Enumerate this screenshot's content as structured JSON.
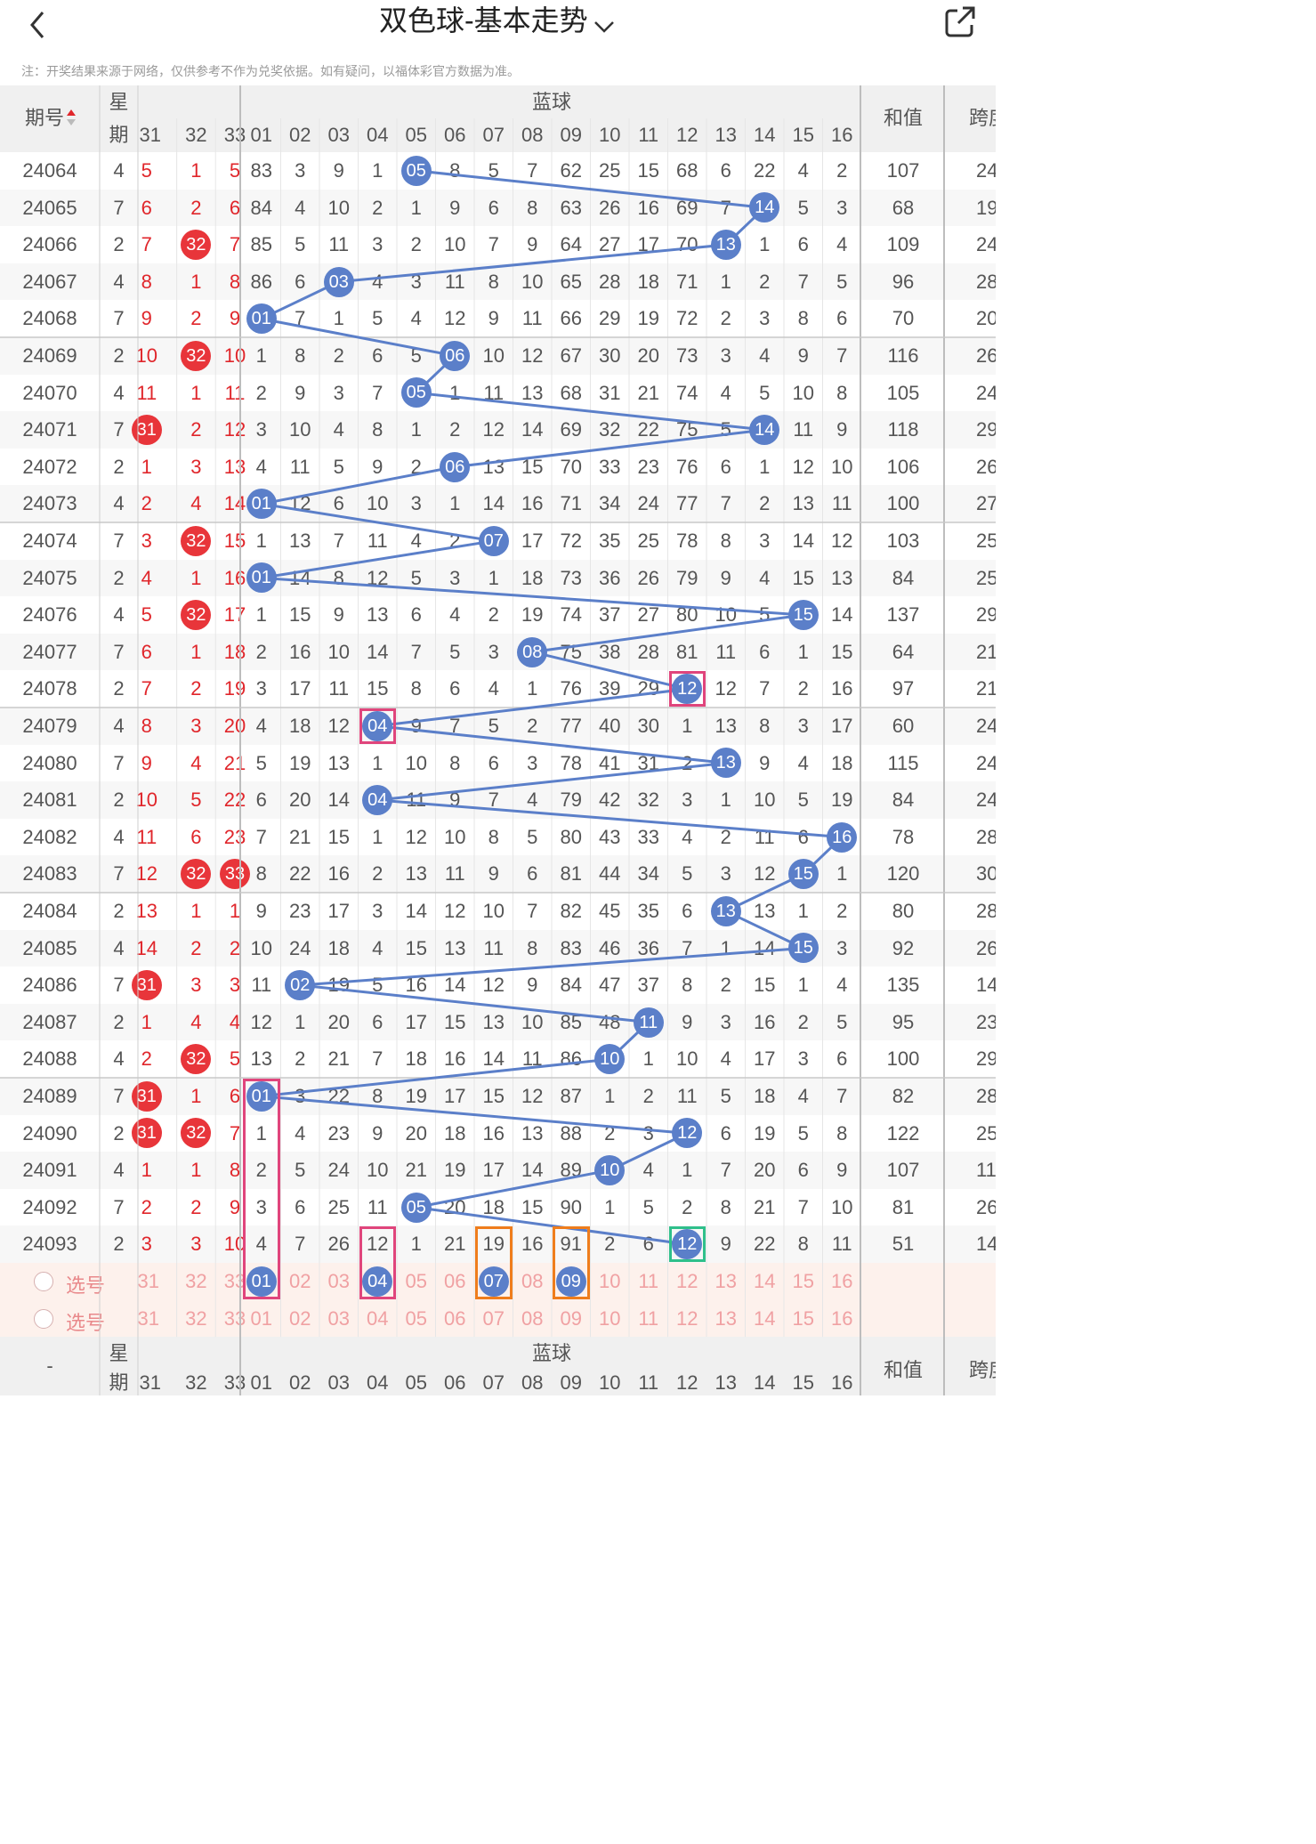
{
  "header": {
    "title": "双色球-基本走势",
    "note": "注：开奖结果来源于网络，仅供参考不作为兑奖依据。如有疑问，以福体彩官方数据为准。"
  },
  "table": {
    "col_period": "期号",
    "col_week_top": "星",
    "col_week_bottom": "期",
    "red_tail_cols": [
      "31",
      "32",
      "33"
    ],
    "blue_group_label": "蓝球",
    "blue_cols": [
      "01",
      "02",
      "03",
      "04",
      "05",
      "06",
      "07",
      "08",
      "09",
      "10",
      "11",
      "12",
      "13",
      "14",
      "15",
      "16"
    ],
    "col_sum": "和值",
    "col_span": "跨度",
    "footer_dash": "-",
    "pick_label": "选号",
    "sort_icon": "sort-icon",
    "rows": [
      {
        "p": "24064",
        "w": "4",
        "r": [
          "5",
          "1",
          "5"
        ],
        "rh": [],
        "b": [
          "83",
          "3",
          "9",
          "1",
          "05",
          "8",
          "5",
          "7",
          "62",
          "25",
          "15",
          "68",
          "6",
          "22",
          "4",
          "2"
        ],
        "bh": 4,
        "s": "107",
        "k": "24"
      },
      {
        "p": "24065",
        "w": "7",
        "r": [
          "6",
          "2",
          "6"
        ],
        "rh": [],
        "b": [
          "84",
          "4",
          "10",
          "2",
          "1",
          "9",
          "6",
          "8",
          "63",
          "26",
          "16",
          "69",
          "7",
          "14",
          "5",
          "3"
        ],
        "bh": 13,
        "s": "68",
        "k": "19"
      },
      {
        "p": "24066",
        "w": "2",
        "r": [
          "7",
          "32",
          "7"
        ],
        "rh": [
          1
        ],
        "b": [
          "85",
          "5",
          "11",
          "3",
          "2",
          "10",
          "7",
          "9",
          "64",
          "27",
          "17",
          "70",
          "13",
          "1",
          "6",
          "4"
        ],
        "bh": 12,
        "s": "109",
        "k": "24"
      },
      {
        "p": "24067",
        "w": "4",
        "r": [
          "8",
          "1",
          "8"
        ],
        "rh": [],
        "b": [
          "86",
          "6",
          "03",
          "4",
          "3",
          "11",
          "8",
          "10",
          "65",
          "28",
          "18",
          "71",
          "1",
          "2",
          "7",
          "5"
        ],
        "bh": 2,
        "s": "96",
        "k": "28"
      },
      {
        "p": "24068",
        "w": "7",
        "r": [
          "9",
          "2",
          "9"
        ],
        "rh": [],
        "b": [
          "01",
          "7",
          "1",
          "5",
          "4",
          "12",
          "9",
          "11",
          "66",
          "29",
          "19",
          "72",
          "2",
          "3",
          "8",
          "6"
        ],
        "bh": 0,
        "s": "70",
        "k": "20"
      },
      {
        "p": "24069",
        "w": "2",
        "r": [
          "10",
          "32",
          "10"
        ],
        "rh": [
          1
        ],
        "b": [
          "1",
          "8",
          "2",
          "6",
          "5",
          "06",
          "10",
          "12",
          "67",
          "30",
          "20",
          "73",
          "3",
          "4",
          "9",
          "7"
        ],
        "bh": 5,
        "s": "116",
        "k": "26"
      },
      {
        "p": "24070",
        "w": "4",
        "r": [
          "11",
          "1",
          "11"
        ],
        "rh": [],
        "b": [
          "2",
          "9",
          "3",
          "7",
          "05",
          "1",
          "11",
          "13",
          "68",
          "31",
          "21",
          "74",
          "4",
          "5",
          "10",
          "8"
        ],
        "bh": 4,
        "s": "105",
        "k": "24"
      },
      {
        "p": "24071",
        "w": "7",
        "r": [
          "31",
          "2",
          "12"
        ],
        "rh": [
          0
        ],
        "b": [
          "3",
          "10",
          "4",
          "8",
          "1",
          "2",
          "12",
          "14",
          "69",
          "32",
          "22",
          "75",
          "5",
          "14",
          "11",
          "9"
        ],
        "bh": 13,
        "s": "118",
        "k": "29"
      },
      {
        "p": "24072",
        "w": "2",
        "r": [
          "1",
          "3",
          "13"
        ],
        "rh": [],
        "b": [
          "4",
          "11",
          "5",
          "9",
          "2",
          "06",
          "13",
          "15",
          "70",
          "33",
          "23",
          "76",
          "6",
          "1",
          "12",
          "10"
        ],
        "bh": 5,
        "s": "106",
        "k": "26"
      },
      {
        "p": "24073",
        "w": "4",
        "r": [
          "2",
          "4",
          "14"
        ],
        "rh": [],
        "b": [
          "01",
          "12",
          "6",
          "10",
          "3",
          "1",
          "14",
          "16",
          "71",
          "34",
          "24",
          "77",
          "7",
          "2",
          "13",
          "11"
        ],
        "bh": 0,
        "s": "100",
        "k": "27"
      },
      {
        "p": "24074",
        "w": "7",
        "r": [
          "3",
          "32",
          "15"
        ],
        "rh": [
          1
        ],
        "b": [
          "1",
          "13",
          "7",
          "11",
          "4",
          "2",
          "07",
          "17",
          "72",
          "35",
          "25",
          "78",
          "8",
          "3",
          "14",
          "12"
        ],
        "bh": 6,
        "s": "103",
        "k": "25"
      },
      {
        "p": "24075",
        "w": "2",
        "r": [
          "4",
          "1",
          "16"
        ],
        "rh": [],
        "b": [
          "01",
          "14",
          "8",
          "12",
          "5",
          "3",
          "1",
          "18",
          "73",
          "36",
          "26",
          "79",
          "9",
          "4",
          "15",
          "13"
        ],
        "bh": 0,
        "s": "84",
        "k": "25"
      },
      {
        "p": "24076",
        "w": "4",
        "r": [
          "5",
          "32",
          "17"
        ],
        "rh": [
          1
        ],
        "b": [
          "1",
          "15",
          "9",
          "13",
          "6",
          "4",
          "2",
          "19",
          "74",
          "37",
          "27",
          "80",
          "10",
          "5",
          "15",
          "14"
        ],
        "bh": 14,
        "s": "137",
        "k": "29"
      },
      {
        "p": "24077",
        "w": "7",
        "r": [
          "6",
          "1",
          "18"
        ],
        "rh": [],
        "b": [
          "2",
          "16",
          "10",
          "14",
          "7",
          "5",
          "3",
          "08",
          "75",
          "38",
          "28",
          "81",
          "11",
          "6",
          "1",
          "15"
        ],
        "bh": 7,
        "s": "64",
        "k": "21"
      },
      {
        "p": "24078",
        "w": "2",
        "r": [
          "7",
          "2",
          "19"
        ],
        "rh": [],
        "b": [
          "3",
          "17",
          "11",
          "15",
          "8",
          "6",
          "4",
          "1",
          "76",
          "39",
          "29",
          "12",
          "12",
          "7",
          "2",
          "16"
        ],
        "bh": 11,
        "s": "97",
        "k": "21"
      },
      {
        "p": "24079",
        "w": "4",
        "r": [
          "8",
          "3",
          "20"
        ],
        "rh": [],
        "b": [
          "4",
          "18",
          "12",
          "04",
          "9",
          "7",
          "5",
          "2",
          "77",
          "40",
          "30",
          "1",
          "13",
          "8",
          "3",
          "17"
        ],
        "bh": 3,
        "s": "60",
        "k": "24"
      },
      {
        "p": "24080",
        "w": "7",
        "r": [
          "9",
          "4",
          "21"
        ],
        "rh": [],
        "b": [
          "5",
          "19",
          "13",
          "1",
          "10",
          "8",
          "6",
          "3",
          "78",
          "41",
          "31",
          "2",
          "13",
          "9",
          "4",
          "18"
        ],
        "bh": 12,
        "s": "115",
        "k": "24"
      },
      {
        "p": "24081",
        "w": "2",
        "r": [
          "10",
          "5",
          "22"
        ],
        "rh": [],
        "b": [
          "6",
          "20",
          "14",
          "04",
          "11",
          "9",
          "7",
          "4",
          "79",
          "42",
          "32",
          "3",
          "1",
          "10",
          "5",
          "19"
        ],
        "bh": 3,
        "s": "84",
        "k": "24"
      },
      {
        "p": "24082",
        "w": "4",
        "r": [
          "11",
          "6",
          "23"
        ],
        "rh": [],
        "b": [
          "7",
          "21",
          "15",
          "1",
          "12",
          "10",
          "8",
          "5",
          "80",
          "43",
          "33",
          "4",
          "2",
          "11",
          "6",
          "16"
        ],
        "bh": 15,
        "s": "78",
        "k": "28"
      },
      {
        "p": "24083",
        "w": "7",
        "r": [
          "12",
          "32",
          "33"
        ],
        "rh": [
          1,
          2
        ],
        "b": [
          "8",
          "22",
          "16",
          "2",
          "13",
          "11",
          "9",
          "6",
          "81",
          "44",
          "34",
          "5",
          "3",
          "12",
          "15",
          "1"
        ],
        "bh": 14,
        "s": "120",
        "k": "30"
      },
      {
        "p": "24084",
        "w": "2",
        "r": [
          "13",
          "1",
          "1"
        ],
        "rh": [],
        "b": [
          "9",
          "23",
          "17",
          "3",
          "14",
          "12",
          "10",
          "7",
          "82",
          "45",
          "35",
          "6",
          "13",
          "13",
          "1",
          "2"
        ],
        "bh": 12,
        "s": "80",
        "k": "28"
      },
      {
        "p": "24085",
        "w": "4",
        "r": [
          "14",
          "2",
          "2"
        ],
        "rh": [],
        "b": [
          "10",
          "24",
          "18",
          "4",
          "15",
          "13",
          "11",
          "8",
          "83",
          "46",
          "36",
          "7",
          "1",
          "14",
          "15",
          "3"
        ],
        "bh": 14,
        "s": "92",
        "k": "26"
      },
      {
        "p": "24086",
        "w": "7",
        "r": [
          "31",
          "3",
          "3"
        ],
        "rh": [
          0
        ],
        "b": [
          "11",
          "02",
          "19",
          "5",
          "16",
          "14",
          "12",
          "9",
          "84",
          "47",
          "37",
          "8",
          "2",
          "15",
          "1",
          "4"
        ],
        "bh": 1,
        "s": "135",
        "k": "14"
      },
      {
        "p": "24087",
        "w": "2",
        "r": [
          "1",
          "4",
          "4"
        ],
        "rh": [],
        "b": [
          "12",
          "1",
          "20",
          "6",
          "17",
          "15",
          "13",
          "10",
          "85",
          "48",
          "11",
          "9",
          "3",
          "16",
          "2",
          "5"
        ],
        "bh": 10,
        "s": "95",
        "k": "23"
      },
      {
        "p": "24088",
        "w": "4",
        "r": [
          "2",
          "32",
          "5"
        ],
        "rh": [
          1
        ],
        "b": [
          "13",
          "2",
          "21",
          "7",
          "18",
          "16",
          "14",
          "11",
          "86",
          "10",
          "1",
          "10",
          "4",
          "17",
          "3",
          "6"
        ],
        "bh": 9,
        "s": "100",
        "k": "29"
      },
      {
        "p": "24089",
        "w": "7",
        "r": [
          "31",
          "1",
          "6"
        ],
        "rh": [
          0
        ],
        "b": [
          "01",
          "3",
          "22",
          "8",
          "19",
          "17",
          "15",
          "12",
          "87",
          "1",
          "2",
          "11",
          "5",
          "18",
          "4",
          "7"
        ],
        "bh": 0,
        "s": "82",
        "k": "28"
      },
      {
        "p": "24090",
        "w": "2",
        "r": [
          "31",
          "32",
          "7"
        ],
        "rh": [
          0,
          1
        ],
        "b": [
          "1",
          "4",
          "23",
          "9",
          "20",
          "18",
          "16",
          "13",
          "88",
          "2",
          "3",
          "12",
          "6",
          "19",
          "5",
          "8"
        ],
        "bh": 11,
        "s": "122",
        "k": "25"
      },
      {
        "p": "24091",
        "w": "4",
        "r": [
          "1",
          "1",
          "8"
        ],
        "rh": [],
        "b": [
          "2",
          "5",
          "24",
          "10",
          "21",
          "19",
          "17",
          "14",
          "89",
          "10",
          "4",
          "1",
          "7",
          "20",
          "6",
          "9"
        ],
        "bh": 9,
        "s": "107",
        "k": "11"
      },
      {
        "p": "24092",
        "w": "7",
        "r": [
          "2",
          "2",
          "9"
        ],
        "rh": [],
        "b": [
          "3",
          "6",
          "25",
          "11",
          "05",
          "20",
          "18",
          "15",
          "90",
          "1",
          "5",
          "2",
          "8",
          "21",
          "7",
          "10"
        ],
        "bh": 4,
        "s": "81",
        "k": "26"
      },
      {
        "p": "24093",
        "w": "2",
        "r": [
          "3",
          "3",
          "10"
        ],
        "rh": [],
        "b": [
          "4",
          "7",
          "26",
          "12",
          "1",
          "21",
          "19",
          "16",
          "91",
          "2",
          "6",
          "12",
          "9",
          "22",
          "8",
          "11"
        ],
        "bh": 11,
        "s": "51",
        "k": "14"
      }
    ],
    "pick_row_1_selected": [
      0,
      3,
      6,
      8
    ]
  },
  "colors": {
    "blue_ball": "#5b7fc9",
    "red_ball": "#e8353a",
    "pink_box": "#e0457c",
    "orange_box": "#ef7d1c",
    "green_box": "#2fc08b"
  }
}
